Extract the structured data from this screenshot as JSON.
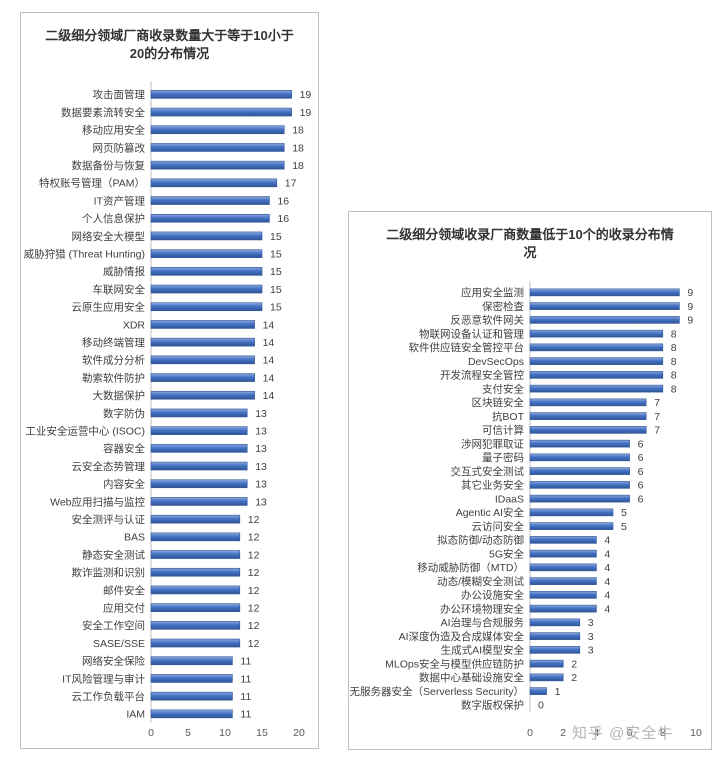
{
  "chart_data": [
    {
      "type": "bar",
      "orientation": "horizontal",
      "title": "二级细分领域厂商收录数量大于等于10小于20的分布情况",
      "categories": [
        "攻击面管理",
        "数据要素流转安全",
        "移动应用安全",
        "网页防篡改",
        "数据备份与恢复",
        "特权账号管理（PAM）",
        "IT资产管理",
        "个人信息保护",
        "网络安全大模型",
        "威胁狩猎 (Threat Hunting)",
        "威胁情报",
        "车联网安全",
        "云原生应用安全",
        "XDR",
        "移动终端管理",
        "软件成分分析",
        "勒索软件防护",
        "大数据保护",
        "数字防伪",
        "工业安全运营中心 (ISOC)",
        "容器安全",
        "云安全态势管理",
        "内容安全",
        "Web应用扫描与监控",
        "安全测评与认证",
        "BAS",
        "静态安全测试",
        "欺诈监测和识别",
        "邮件安全",
        "应用交付",
        "安全工作空间",
        "SASE/SSE",
        "网络安全保险",
        "IT风险管理与审计",
        "云工作负载平台",
        "IAM"
      ],
      "values": [
        19,
        19,
        18,
        18,
        18,
        17,
        16,
        16,
        15,
        15,
        15,
        15,
        15,
        14,
        14,
        14,
        14,
        14,
        13,
        13,
        13,
        13,
        13,
        13,
        12,
        12,
        12,
        12,
        12,
        12,
        12,
        12,
        11,
        11,
        11,
        11
      ],
      "xlim": [
        0,
        20
      ],
      "xticks": [
        0,
        5,
        10,
        15,
        20
      ],
      "bar_color": "#4472C4",
      "grid": false
    },
    {
      "type": "bar",
      "orientation": "horizontal",
      "title": "二级细分领域收录厂商数量低于10个的收录分布情况",
      "categories": [
        "应用安全监测",
        "保密检查",
        "反恶意软件网关",
        "物联网设备认证和管理",
        "软件供应链安全管控平台",
        "DevSecOps",
        "开发流程安全管控",
        "支付安全",
        "区块链安全",
        "抗BOT",
        "可信计算",
        "涉网犯罪取证",
        "量子密码",
        "交互式安全测试",
        "其它业务安全",
        "IDaaS",
        "Agentic AI安全",
        "云访问安全",
        "拟态防御/动态防御",
        "5G安全",
        "移动威胁防御（MTD）",
        "动态/模糊安全测试",
        "办公设施安全",
        "办公环境物理安全",
        "AI治理与合规服务",
        "AI深度伪造及合成媒体安全",
        "生成式AI模型安全",
        "MLOps安全与模型供应链防护",
        "数据中心基础设施安全",
        "无服务器安全（Serverless Security）",
        "数字版权保护"
      ],
      "values": [
        9,
        9,
        9,
        8,
        8,
        8,
        8,
        8,
        7,
        7,
        7,
        6,
        6,
        6,
        6,
        6,
        5,
        5,
        4,
        4,
        4,
        4,
        4,
        4,
        3,
        3,
        3,
        2,
        2,
        1,
        0
      ],
      "xlim": [
        0,
        10
      ],
      "xticks": [
        0,
        2,
        4,
        6,
        8,
        10
      ],
      "bar_color": "#4472C4",
      "grid": false
    }
  ],
  "watermark": "知乎 @安全牛"
}
